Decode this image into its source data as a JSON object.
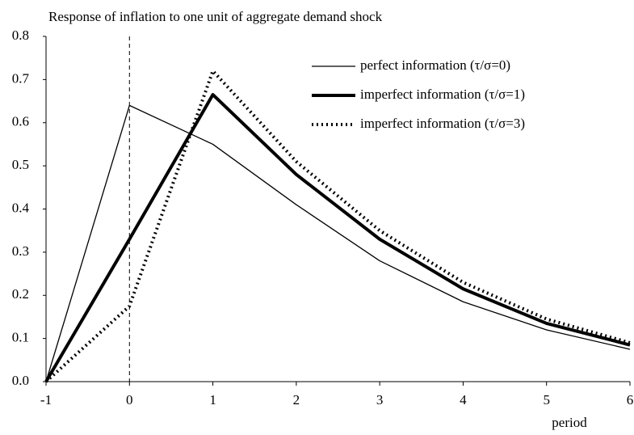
{
  "chart_data": {
    "type": "line",
    "title": "Response of inflation to one unit of aggregate demand shock",
    "x_label": "period",
    "x": [
      -1,
      0,
      1,
      2,
      3,
      4,
      5,
      6
    ],
    "series": [
      {
        "name": "perfect information (τ/σ=0)",
        "color": "#000000",
        "width": 1.3,
        "style": "solid",
        "values": [
          0,
          0.64,
          0.55,
          0.41,
          0.28,
          0.185,
          0.12,
          0.075
        ]
      },
      {
        "name": "imperfect information (τ/σ=1)",
        "color": "#000000",
        "width": 4,
        "style": "solid",
        "values": [
          0,
          0.33,
          0.665,
          0.48,
          0.33,
          0.215,
          0.135,
          0.085
        ]
      },
      {
        "name": "imperfect information (τ/σ=3)",
        "color": "#000000",
        "width": 4,
        "style": "dotted",
        "values": [
          0,
          0.175,
          0.72,
          0.51,
          0.35,
          0.23,
          0.145,
          0.09
        ]
      }
    ],
    "xlim": [
      -1,
      6
    ],
    "xticks": [
      -1,
      0,
      1,
      2,
      3,
      4,
      5,
      6
    ],
    "ylim": [
      0,
      0.8
    ],
    "yticks": [
      {
        "value": 0,
        "label": "0.0"
      },
      0.1,
      0.2,
      0.3,
      0.4,
      0.5,
      0.6,
      0.7,
      0.8
    ],
    "vline": 0,
    "grid": false,
    "legend": "upper right"
  }
}
